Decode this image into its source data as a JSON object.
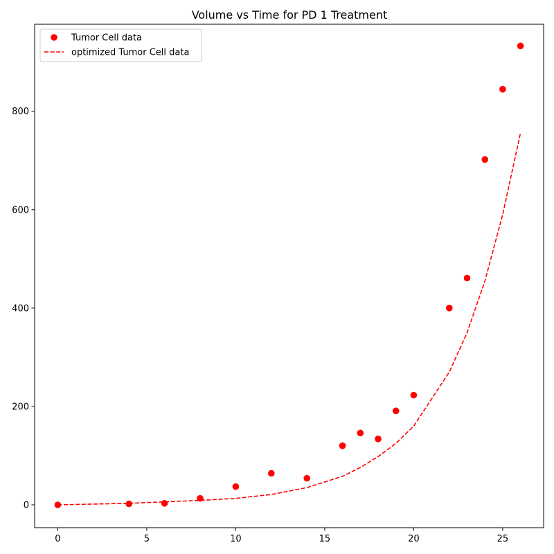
{
  "chart_data": {
    "type": "scatter",
    "title": "Volume vs Time for PD 1 Treatment",
    "xlabel": "",
    "ylabel": "",
    "xlim": [
      -1.3,
      27.3
    ],
    "ylim": [
      -46.5,
      977
    ],
    "x_ticks": [
      0,
      5,
      10,
      15,
      20,
      25
    ],
    "y_ticks": [
      0,
      200,
      400,
      600,
      800
    ],
    "grid": false,
    "legend_position": "top-left",
    "series": [
      {
        "name": "Tumor Cell data",
        "kind": "markers",
        "color": "#ff0000",
        "x": [
          0,
          4,
          6,
          8,
          10,
          12,
          14,
          16,
          17,
          18,
          19,
          20,
          22,
          23,
          24,
          25,
          26
        ],
        "y": [
          0,
          2,
          3,
          13,
          37,
          64,
          54,
          120,
          146,
          134,
          191,
          223,
          400,
          461,
          702,
          845,
          933
        ]
      },
      {
        "name": "optimized Tumor Cell data",
        "kind": "dashed-line",
        "color": "#ff0000",
        "x": [
          0,
          4,
          6,
          8,
          10,
          12,
          14,
          16,
          17,
          18,
          19,
          20,
          22,
          23,
          24,
          25,
          26
        ],
        "y": [
          0,
          3,
          6,
          9,
          13,
          21,
          35,
          58,
          76,
          98,
          125,
          160,
          270,
          350,
          455,
          590,
          756
        ]
      }
    ]
  }
}
